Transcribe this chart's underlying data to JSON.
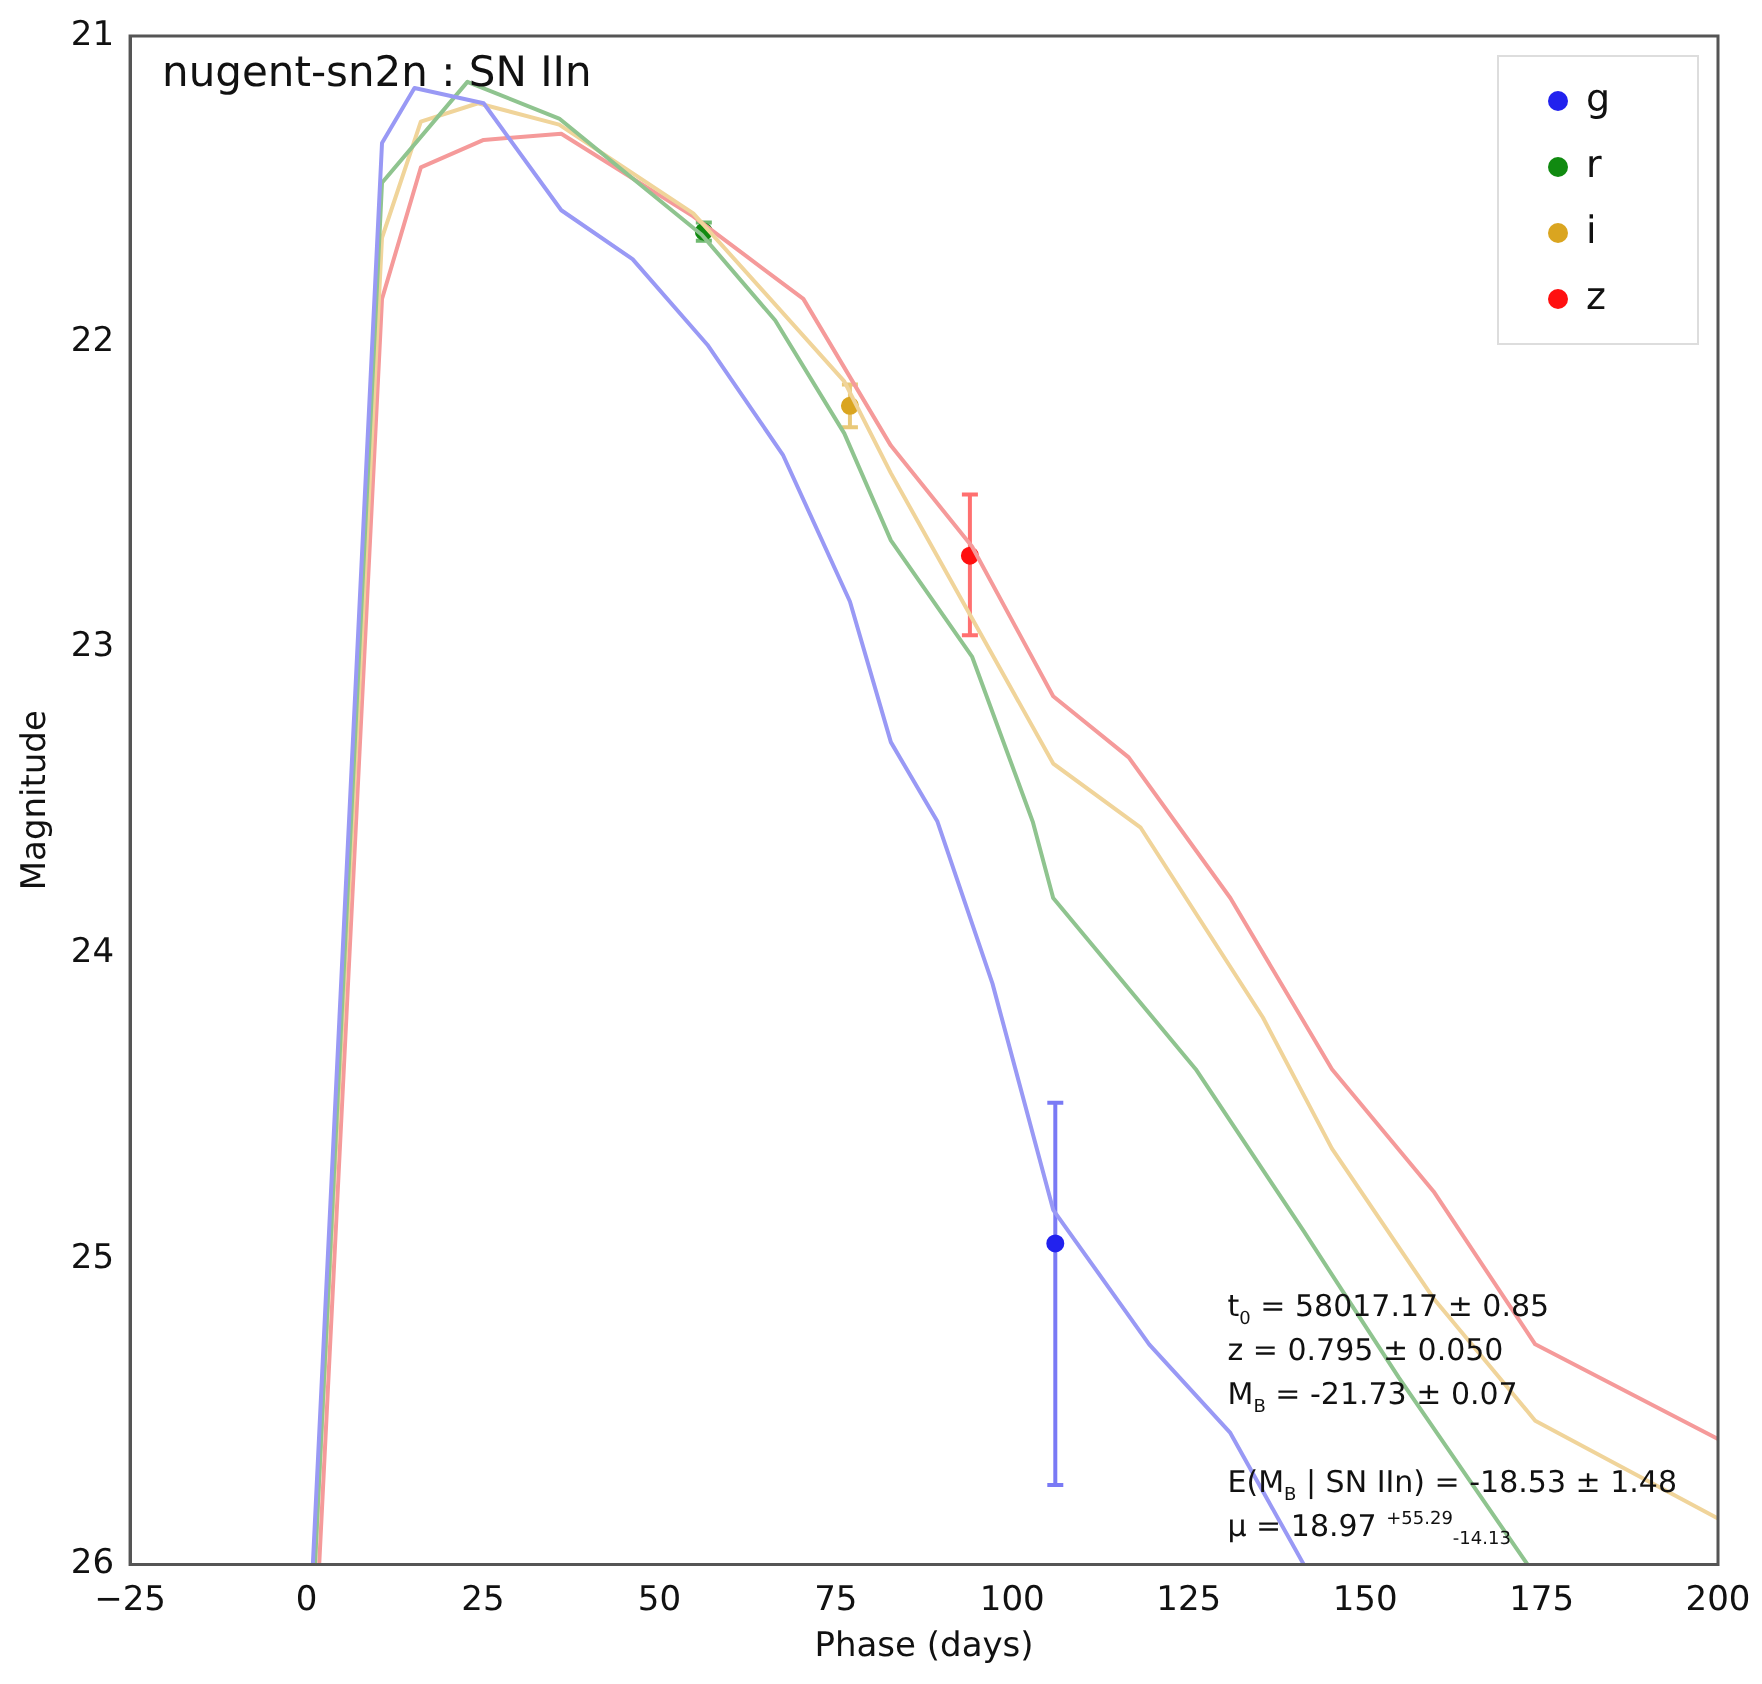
{
  "chart_data": {
    "type": "line",
    "title": "nugent-sn2n : SN IIn",
    "xlabel": "Phase (days)",
    "ylabel": "Magnitude",
    "xlim": [
      -25,
      200
    ],
    "xticks": [
      {
        "value": -25,
        "label": "−25"
      },
      0,
      25,
      50,
      75,
      100,
      125,
      150,
      175,
      200
    ],
    "ylim": [
      26,
      21
    ],
    "yticks": [
      21,
      22,
      23,
      24,
      25,
      26
    ],
    "grid": false,
    "legend": "top right",
    "line_style": "solid",
    "annotations": [
      "t$_{0}$ = 58017.17 ± 0.85",
      "z = 0.795 ± 0.050",
      "M$_{B}$ = -21.73 ± 0.07",
      "E(M$_{B}$ | SN IIn) =  -18.53 ± 1.48",
      "μ = 18.97 $^{+55.29}$$_{-14.13}$"
    ],
    "series": [
      {
        "marker": "none",
        "color": "#9999f5",
        "x": [
          0.9,
          10.7,
          15.3,
          25.1,
          36.1,
          46.2,
          56.8,
          67.5,
          77.0,
          82.8,
          89.4,
          97.2,
          105.8,
          119.4,
          130.9,
          141.3
        ],
        "values": [
          26,
          21.35,
          21.17,
          21.22,
          21.57,
          21.73,
          22.01,
          22.37,
          22.85,
          23.31,
          23.57,
          24.1,
          24.84,
          25.28,
          25.57,
          26
        ]
      },
      {
        "marker": "none",
        "color": "#8fc48f",
        "x": [
          1.2,
          10.7,
          22.8,
          35.8,
          56.0,
          66.4,
          76.2,
          82.8,
          94.3,
          102.9,
          105.8,
          126.0,
          141.3,
          154.8,
          173.0
        ],
        "values": [
          26,
          21.48,
          21.15,
          21.27,
          21.65,
          21.93,
          22.3,
          22.65,
          23.03,
          23.57,
          23.82,
          24.38,
          24.91,
          25.39,
          26
        ]
      },
      {
        "marker": "none",
        "color": "#f0d49a",
        "x": [
          1.2,
          10.7,
          16.2,
          24.3,
          35.8,
          54.8,
          76.2,
          82.8,
          105.8,
          118.2,
          135.5,
          145.3,
          159.7,
          174.1,
          200
        ],
        "values": [
          26,
          21.66,
          21.28,
          21.22,
          21.29,
          21.58,
          22.13,
          22.43,
          23.38,
          23.59,
          24.21,
          24.64,
          25.13,
          25.53,
          25.85
        ]
      },
      {
        "marker": "none",
        "color": "#f59a9a",
        "x": [
          1.8,
          10.7,
          16.2,
          25.1,
          36.1,
          54.8,
          70.4,
          82.8,
          94.3,
          105.8,
          116.5,
          130.9,
          145.3,
          159.7,
          174.1,
          200
        ],
        "values": [
          26,
          21.86,
          21.43,
          21.34,
          21.32,
          21.59,
          21.86,
          22.34,
          22.67,
          23.16,
          23.36,
          23.82,
          24.38,
          24.78,
          25.28,
          25.59
        ]
      },
      {
        "type": "scatter",
        "marker": "circle",
        "name": "g",
        "color": "#2222ee",
        "x": [
          106.1
        ],
        "values": [
          24.95
        ],
        "errors": [
          [
            24.49,
            25.74
          ]
        ]
      },
      {
        "type": "scatter",
        "marker": "circle",
        "name": "r",
        "color": "#108a10",
        "x": [
          56.3
        ],
        "values": [
          21.64
        ],
        "errors": [
          0.03
        ]
      },
      {
        "type": "scatter",
        "marker": "circle",
        "name": "i",
        "color": "#daa520",
        "x": [
          77.0
        ],
        "values": [
          22.21
        ],
        "errors": [
          0.07
        ]
      },
      {
        "type": "scatter",
        "marker": "circle",
        "name": "z",
        "color": "#ff1010",
        "x": [
          94.0
        ],
        "values": [
          22.7
        ],
        "errors": [
          [
            22.5,
            22.96
          ]
        ]
      }
    ]
  }
}
